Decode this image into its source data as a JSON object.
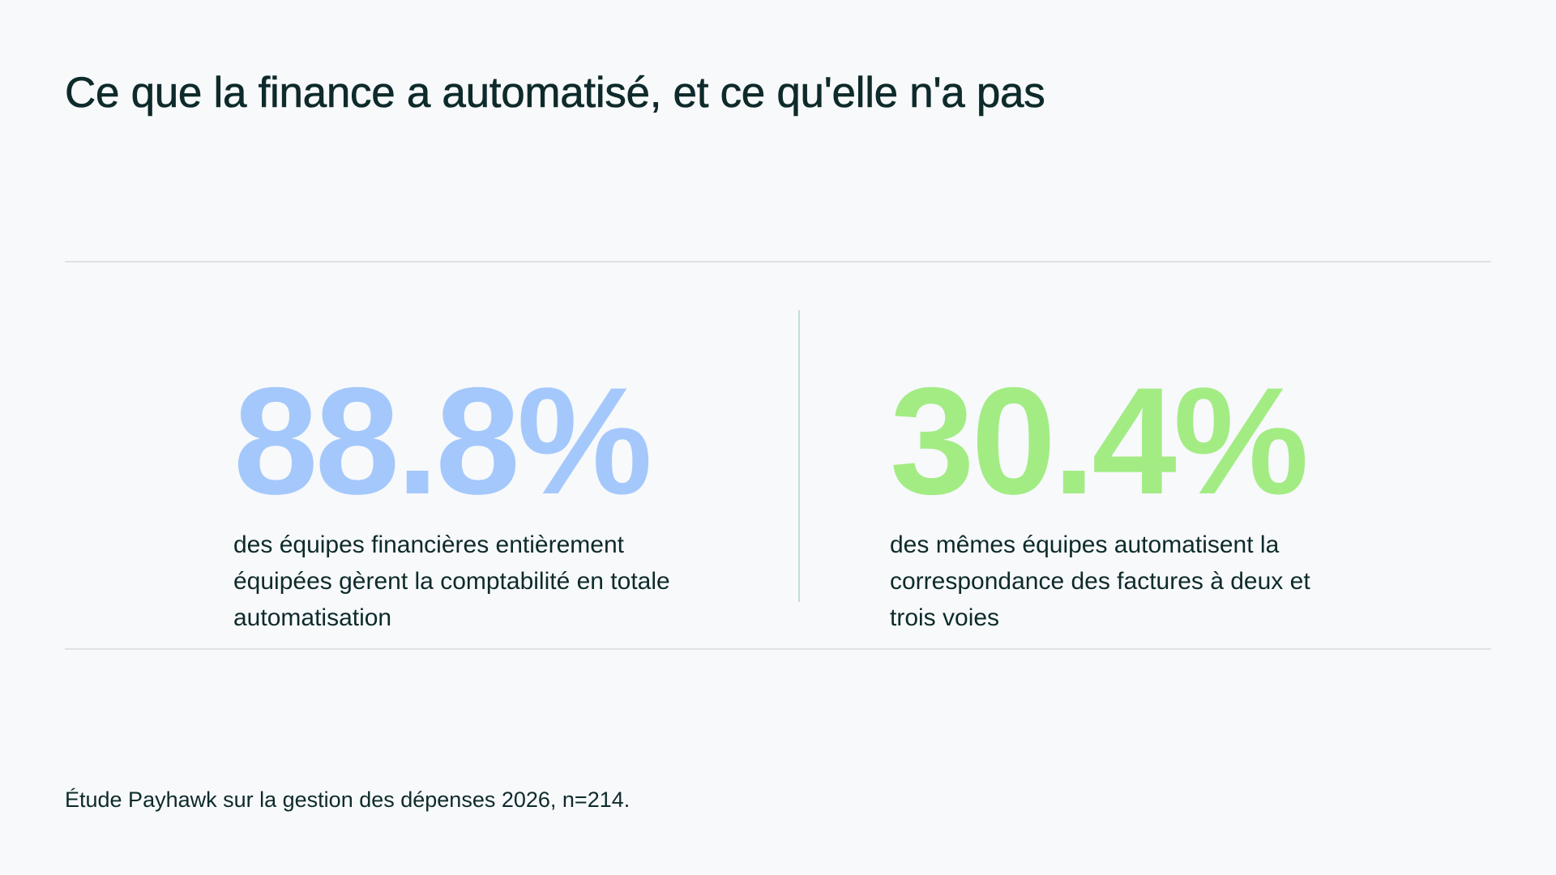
{
  "header": {
    "title": "Ce que la finance a automatisé, et ce qu'elle n'a pas"
  },
  "stats": [
    {
      "value": "88.8%",
      "description": "des équipes financières entièrement équipées gèrent la comptabilité en totale automatisation",
      "color": "#a4c8fb"
    },
    {
      "value": "30.4%",
      "description": "des mêmes équipes automatisent la correspondance des factures à deux et trois voies",
      "color": "#a3ec84"
    }
  ],
  "footer": {
    "source": "Étude Payhawk sur la gestion des dépenses 2026, n=214."
  },
  "colors": {
    "background": "#f7f9fb",
    "text": "#0e2a2a",
    "rule": "#dfe3e6",
    "divider": "#bfe0d7"
  }
}
